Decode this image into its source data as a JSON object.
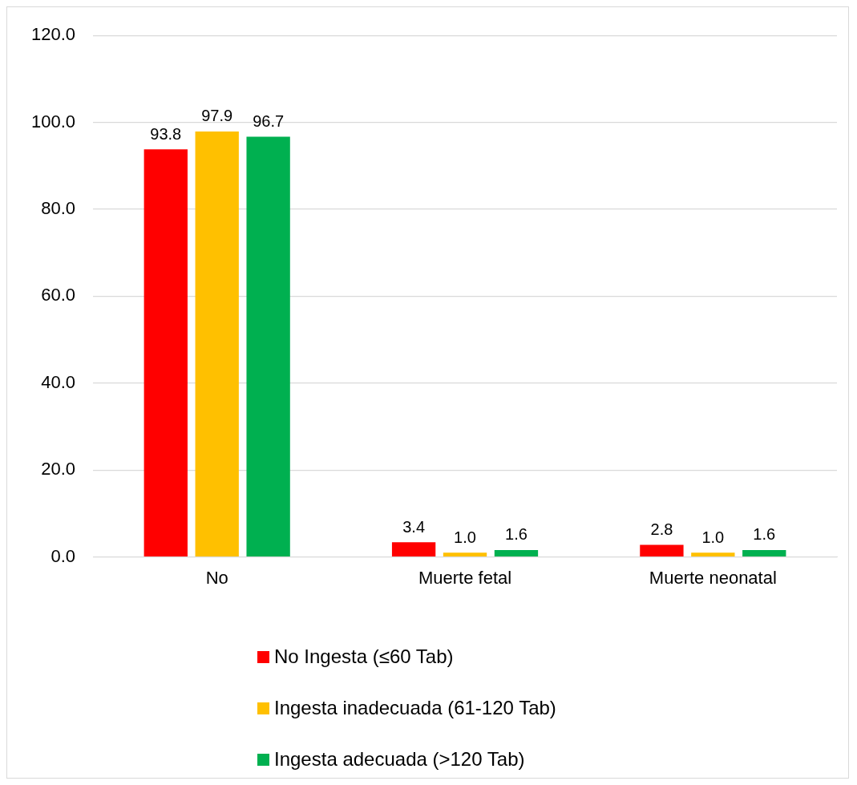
{
  "chart_data": {
    "type": "bar",
    "categories": [
      "No",
      "Muerte fetal",
      "Muerte neonatal"
    ],
    "series": [
      {
        "name": "No Ingesta (≤60 Tab)",
        "color": "#ff0000",
        "values": [
          93.8,
          3.4,
          2.8
        ],
        "value_labels": [
          "93.8",
          "3.4",
          "2.8"
        ]
      },
      {
        "name": "Ingesta inadecuada (61-120 Tab)",
        "color": "#ffc000",
        "values": [
          97.9,
          1.0,
          1.0
        ],
        "value_labels": [
          "97.9",
          "1.0",
          "1.0"
        ]
      },
      {
        "name": "Ingesta adecuada (>120 Tab)",
        "color": "#00b050",
        "values": [
          96.7,
          1.6,
          1.6
        ],
        "value_labels": [
          "96.7",
          "1.6",
          "1.6"
        ]
      }
    ],
    "ylim": [
      0,
      120
    ],
    "yticks": [
      {
        "value": 0,
        "label": "0.0"
      },
      {
        "value": 20,
        "label": "20.0"
      },
      {
        "value": 40,
        "label": "40.0"
      },
      {
        "value": 60,
        "label": "60.0"
      },
      {
        "value": 80,
        "label": "80.0"
      },
      {
        "value": 100,
        "label": "100.0"
      },
      {
        "value": 120,
        "label": "120.0"
      }
    ],
    "grid": "y",
    "legend": "bottom"
  }
}
